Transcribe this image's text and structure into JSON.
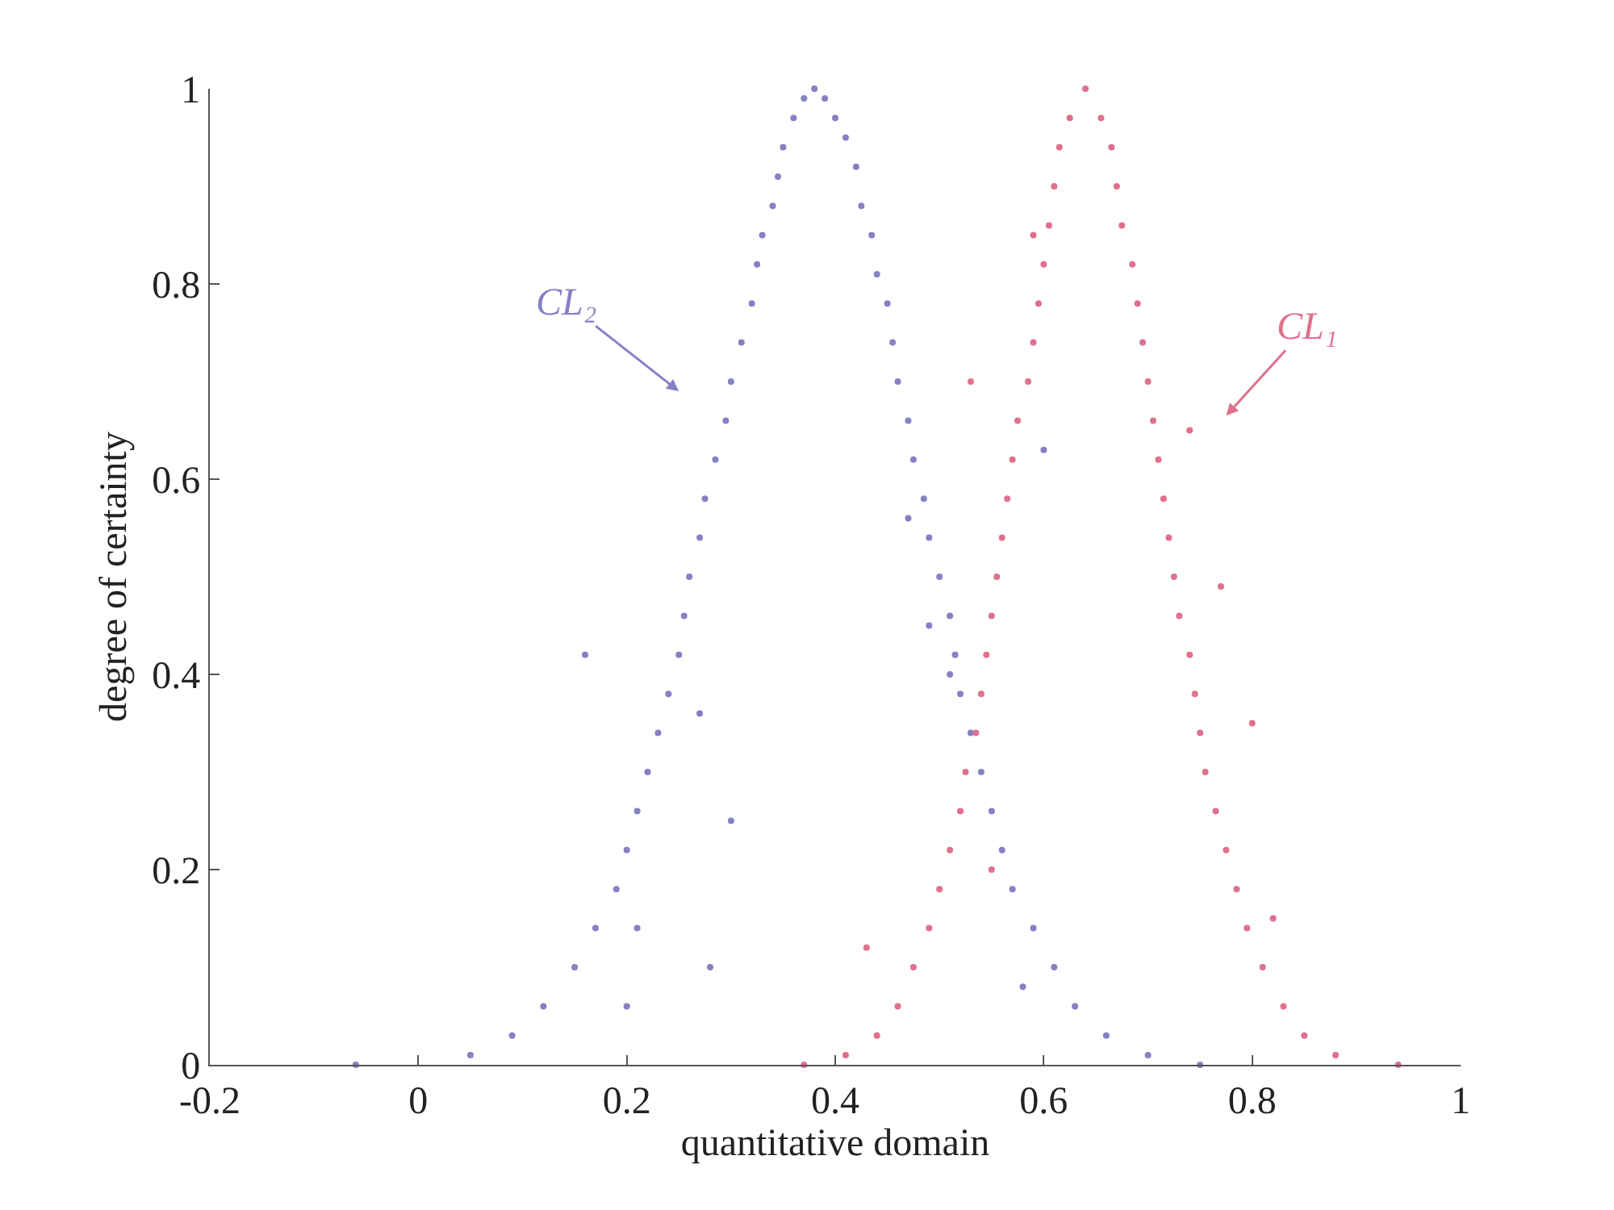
{
  "chart_data": {
    "type": "scatter",
    "xlabel": "quantitative domain",
    "ylabel": "degree of certainty",
    "xlim": [
      -0.2,
      1
    ],
    "xticks": [
      -0.2,
      0,
      0.2,
      0.4,
      0.6,
      0.8,
      1
    ],
    "ylim": [
      0,
      1
    ],
    "yticks": [
      0,
      0.2,
      0.4,
      0.6,
      0.8,
      1
    ],
    "marker": "circle",
    "annotations": [
      "CL₂",
      "CL₁"
    ],
    "series": [
      {
        "color": "#8680c4",
        "x": [
          0.38,
          0.37,
          0.39,
          0.36,
          0.4,
          0.35,
          0.41,
          0.345,
          0.42,
          0.34,
          0.425,
          0.33,
          0.435,
          0.325,
          0.44,
          0.32,
          0.45,
          0.31,
          0.455,
          0.3,
          0.46,
          0.295,
          0.47,
          0.285,
          0.475,
          0.275,
          0.485,
          0.27,
          0.49,
          0.26,
          0.5,
          0.255,
          0.51,
          0.25,
          0.515,
          0.24,
          0.52,
          0.23,
          0.53,
          0.22,
          0.54,
          0.21,
          0.55,
          0.2,
          0.56,
          0.19,
          0.57,
          0.17,
          0.59,
          0.15,
          0.61,
          0.12,
          0.63,
          0.09,
          0.66,
          0.05,
          0.7,
          -0.06,
          0.75,
          0.16,
          0.27,
          0.49,
          0.21,
          0.3,
          0.47,
          0.58,
          0.28,
          0.2,
          0.6,
          0.51
        ],
        "values": [
          1.0,
          0.99,
          0.99,
          0.97,
          0.97,
          0.94,
          0.95,
          0.91,
          0.92,
          0.88,
          0.88,
          0.85,
          0.85,
          0.82,
          0.81,
          0.78,
          0.78,
          0.74,
          0.74,
          0.7,
          0.7,
          0.66,
          0.66,
          0.62,
          0.62,
          0.58,
          0.58,
          0.54,
          0.54,
          0.5,
          0.5,
          0.46,
          0.46,
          0.42,
          0.42,
          0.38,
          0.38,
          0.34,
          0.34,
          0.3,
          0.3,
          0.26,
          0.26,
          0.22,
          0.22,
          0.18,
          0.18,
          0.14,
          0.14,
          0.1,
          0.1,
          0.06,
          0.06,
          0.03,
          0.03,
          0.01,
          0.01,
          0.0,
          0.0,
          0.42,
          0.36,
          0.45,
          0.14,
          0.25,
          0.56,
          0.08,
          0.1,
          0.06,
          0.63,
          0.4
        ]
      },
      {
        "color": "#e0708e",
        "x": [
          0.64,
          0.625,
          0.655,
          0.615,
          0.665,
          0.61,
          0.67,
          0.605,
          0.675,
          0.6,
          0.685,
          0.595,
          0.69,
          0.59,
          0.695,
          0.585,
          0.7,
          0.575,
          0.705,
          0.57,
          0.71,
          0.565,
          0.715,
          0.56,
          0.72,
          0.555,
          0.725,
          0.55,
          0.73,
          0.545,
          0.74,
          0.54,
          0.745,
          0.535,
          0.75,
          0.525,
          0.755,
          0.52,
          0.765,
          0.51,
          0.775,
          0.5,
          0.785,
          0.49,
          0.795,
          0.475,
          0.81,
          0.46,
          0.83,
          0.44,
          0.85,
          0.41,
          0.88,
          0.37,
          0.94,
          0.43,
          0.53,
          0.59,
          0.55,
          0.77,
          0.82,
          0.74,
          0.8
        ],
        "values": [
          1.0,
          0.97,
          0.97,
          0.94,
          0.94,
          0.9,
          0.9,
          0.86,
          0.86,
          0.82,
          0.82,
          0.78,
          0.78,
          0.74,
          0.74,
          0.7,
          0.7,
          0.66,
          0.66,
          0.62,
          0.62,
          0.58,
          0.58,
          0.54,
          0.54,
          0.5,
          0.5,
          0.46,
          0.46,
          0.42,
          0.42,
          0.38,
          0.38,
          0.34,
          0.34,
          0.3,
          0.3,
          0.26,
          0.26,
          0.22,
          0.22,
          0.18,
          0.18,
          0.14,
          0.14,
          0.1,
          0.1,
          0.06,
          0.06,
          0.03,
          0.03,
          0.01,
          0.01,
          0.0,
          0.0,
          0.12,
          0.7,
          0.85,
          0.2,
          0.49,
          0.15,
          0.65,
          0.35
        ]
      }
    ]
  }
}
